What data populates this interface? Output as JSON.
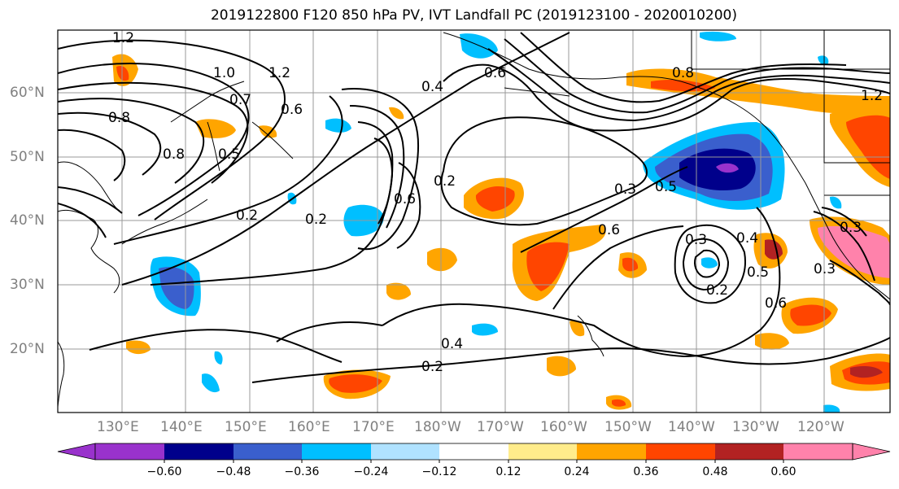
{
  "title": "2019122800 F120 850 hPa PV, IVT Landfall PC (2019123100 - 2020010200)",
  "lat_labels": [
    "60°N",
    "50°N",
    "40°N",
    "30°N",
    "20°N"
  ],
  "lon_labels": [
    "130°E",
    "140°E",
    "150°E",
    "160°E",
    "170°E",
    "180°W",
    "170°W",
    "160°W",
    "150°W",
    "140°W",
    "130°W",
    "120°W"
  ],
  "contour_labels": [
    "1.2",
    "1.0",
    "1.2",
    "0.8",
    "0.7",
    "0.8",
    "0.5",
    "0.6",
    "0.4",
    "0.6",
    "0.2",
    "0.2",
    "0.6",
    "0.2",
    "0.3",
    "0.5",
    "0.6",
    "0.3",
    "0.4",
    "0.5",
    "0.6",
    "0.2",
    "0.3",
    "0.4",
    "0.2",
    "1.2",
    "0.8",
    "0.3"
  ],
  "colorbar": {
    "colors": [
      "#9932CC",
      "#00008B",
      "#3A5FCD",
      "#00BFFF",
      "#B0E2FF",
      "#FFFFFF",
      "#FFEC8B",
      "#FFA500",
      "#FF4500",
      "#B22222",
      "#FF82AB"
    ],
    "tick_labels": [
      "−0.60",
      "−0.48",
      "−0.36",
      "−0.24",
      "−0.12",
      "0.12",
      "0.24",
      "0.36",
      "0.48",
      "0.60"
    ]
  }
}
